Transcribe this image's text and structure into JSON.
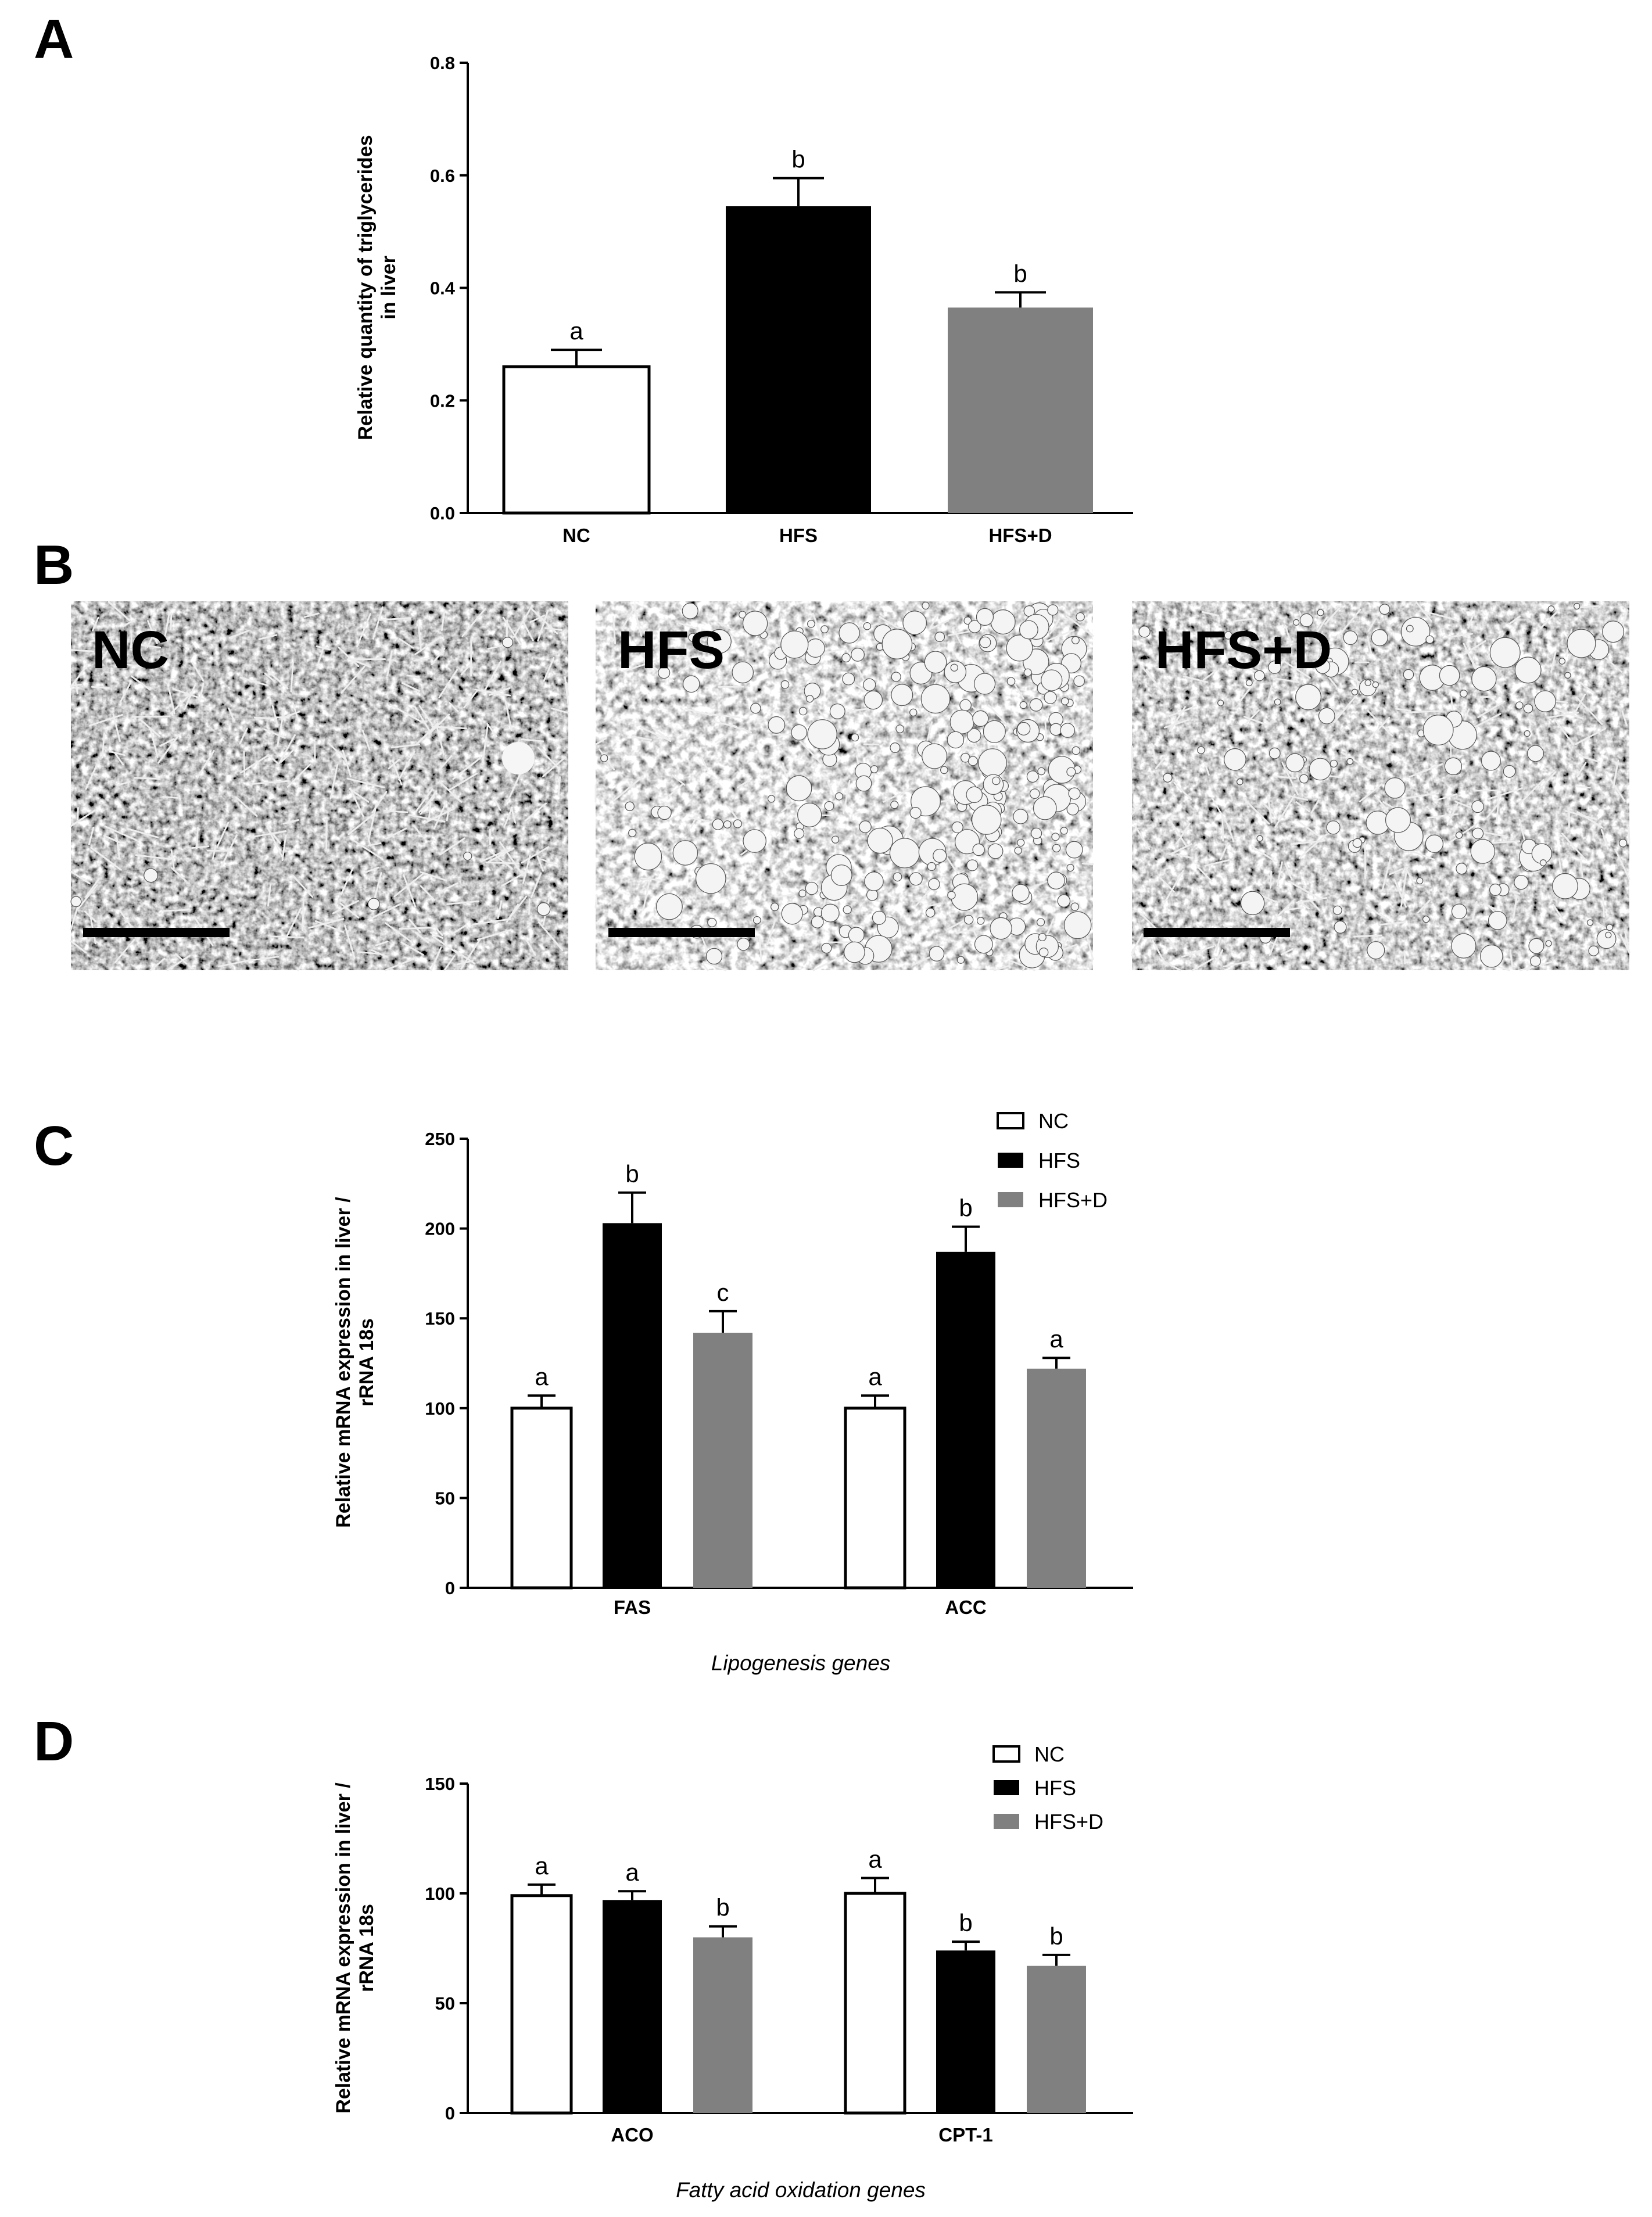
{
  "chart_data": [
    {
      "panel": "A",
      "type": "bar",
      "categories": [
        "NC",
        "HFS",
        "HFS+D"
      ],
      "values": [
        0.26,
        0.545,
        0.365
      ],
      "errors": [
        0.03,
        0.05,
        0.027
      ],
      "significance": [
        "a",
        "b",
        "b"
      ],
      "colors": [
        "#ffffff",
        "#000000",
        "#808080"
      ],
      "ylabel": [
        "Relative quantity of triglycerides",
        "in liver"
      ],
      "ylim": [
        0,
        0.8
      ],
      "yticks": [
        "0.0",
        "0.2",
        "0.4",
        "0.6",
        "0.8"
      ],
      "ytick_values": [
        0,
        0.2,
        0.4,
        0.6,
        0.8
      ]
    },
    {
      "panel": "C",
      "type": "bar",
      "groups": [
        "FAS",
        "ACC"
      ],
      "series": [
        {
          "name": "NC",
          "color": "#ffffff",
          "values": [
            100,
            100
          ],
          "errors": [
            7,
            7
          ],
          "significance": [
            "a",
            "a"
          ]
        },
        {
          "name": "HFS",
          "color": "#000000",
          "values": [
            203,
            187
          ],
          "errors": [
            17,
            14
          ],
          "significance": [
            "b",
            "b"
          ]
        },
        {
          "name": "HFS+D",
          "color": "#808080",
          "values": [
            142,
            122
          ],
          "errors": [
            12,
            6
          ],
          "significance": [
            "c",
            "a"
          ]
        }
      ],
      "ylabel": [
        "Relative mRNA expression in liver /",
        "rRNA 18s"
      ],
      "xlabel": "Lipogenesis genes",
      "ylim": [
        0,
        250
      ],
      "yticks": [
        "0",
        "50",
        "100",
        "150",
        "200",
        "250"
      ],
      "ytick_values": [
        0,
        50,
        100,
        150,
        200,
        250
      ],
      "legend": "top-right"
    },
    {
      "panel": "D",
      "type": "bar",
      "groups": [
        "ACO",
        "CPT-1"
      ],
      "series": [
        {
          "name": "NC",
          "color": "#ffffff",
          "values": [
            99,
            100
          ],
          "errors": [
            5,
            7
          ],
          "significance": [
            "a",
            "a"
          ]
        },
        {
          "name": "HFS",
          "color": "#000000",
          "values": [
            97,
            74
          ],
          "errors": [
            4,
            4
          ],
          "significance": [
            "a",
            "b"
          ]
        },
        {
          "name": "HFS+D",
          "color": "#808080",
          "values": [
            80,
            67
          ],
          "errors": [
            5,
            5
          ],
          "significance": [
            "b",
            "b"
          ]
        }
      ],
      "ylabel": [
        "Relative mRNA expression in liver /",
        "rRNA 18s"
      ],
      "xlabel": "Fatty acid oxidation genes",
      "ylim": [
        0,
        150
      ],
      "yticks": [
        "0",
        "50",
        "100",
        "150"
      ],
      "ytick_values": [
        0,
        50,
        100,
        150
      ],
      "legend": "top-right"
    }
  ],
  "panel_labels": [
    "A",
    "B",
    "C",
    "D"
  ],
  "micrographs": [
    {
      "label": "NC",
      "style": "normal"
    },
    {
      "label": "HFS",
      "style": "steatosis-heavy"
    },
    {
      "label": "HFS+D",
      "style": "steatosis-moderate"
    }
  ]
}
